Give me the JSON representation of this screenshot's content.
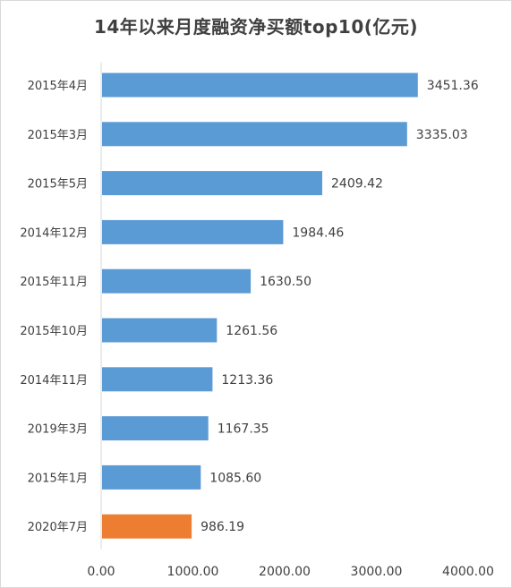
{
  "chart_data": {
    "type": "bar",
    "orientation": "horizontal",
    "title": "14年以来月度融资净买额top10(亿元)",
    "categories": [
      "2015年4月",
      "2015年3月",
      "2015年5月",
      "2014年12月",
      "2015年11月",
      "2015年10月",
      "2014年11月",
      "2019年3月",
      "2015年1月",
      "2020年7月"
    ],
    "values": [
      3451.36,
      3335.03,
      2409.42,
      1984.46,
      1630.5,
      1261.56,
      1213.36,
      1167.35,
      1085.6,
      986.19
    ],
    "value_labels": [
      "3451.36",
      "3335.03",
      "2409.42",
      "1984.46",
      "1630.50",
      "1261.56",
      "1213.36",
      "1167.35",
      "1085.60",
      "986.19"
    ],
    "xlim": [
      0,
      4000
    ],
    "xticks": [
      0,
      1000,
      2000,
      3000,
      4000
    ],
    "xtick_labels": [
      "0.00",
      "1000.00",
      "2000.00",
      "3000.00",
      "4000.00"
    ],
    "grid": false,
    "legend": false,
    "colors": {
      "default": "#5b9bd5",
      "highlight": "#ed7d31"
    },
    "highlight_index": 9
  }
}
